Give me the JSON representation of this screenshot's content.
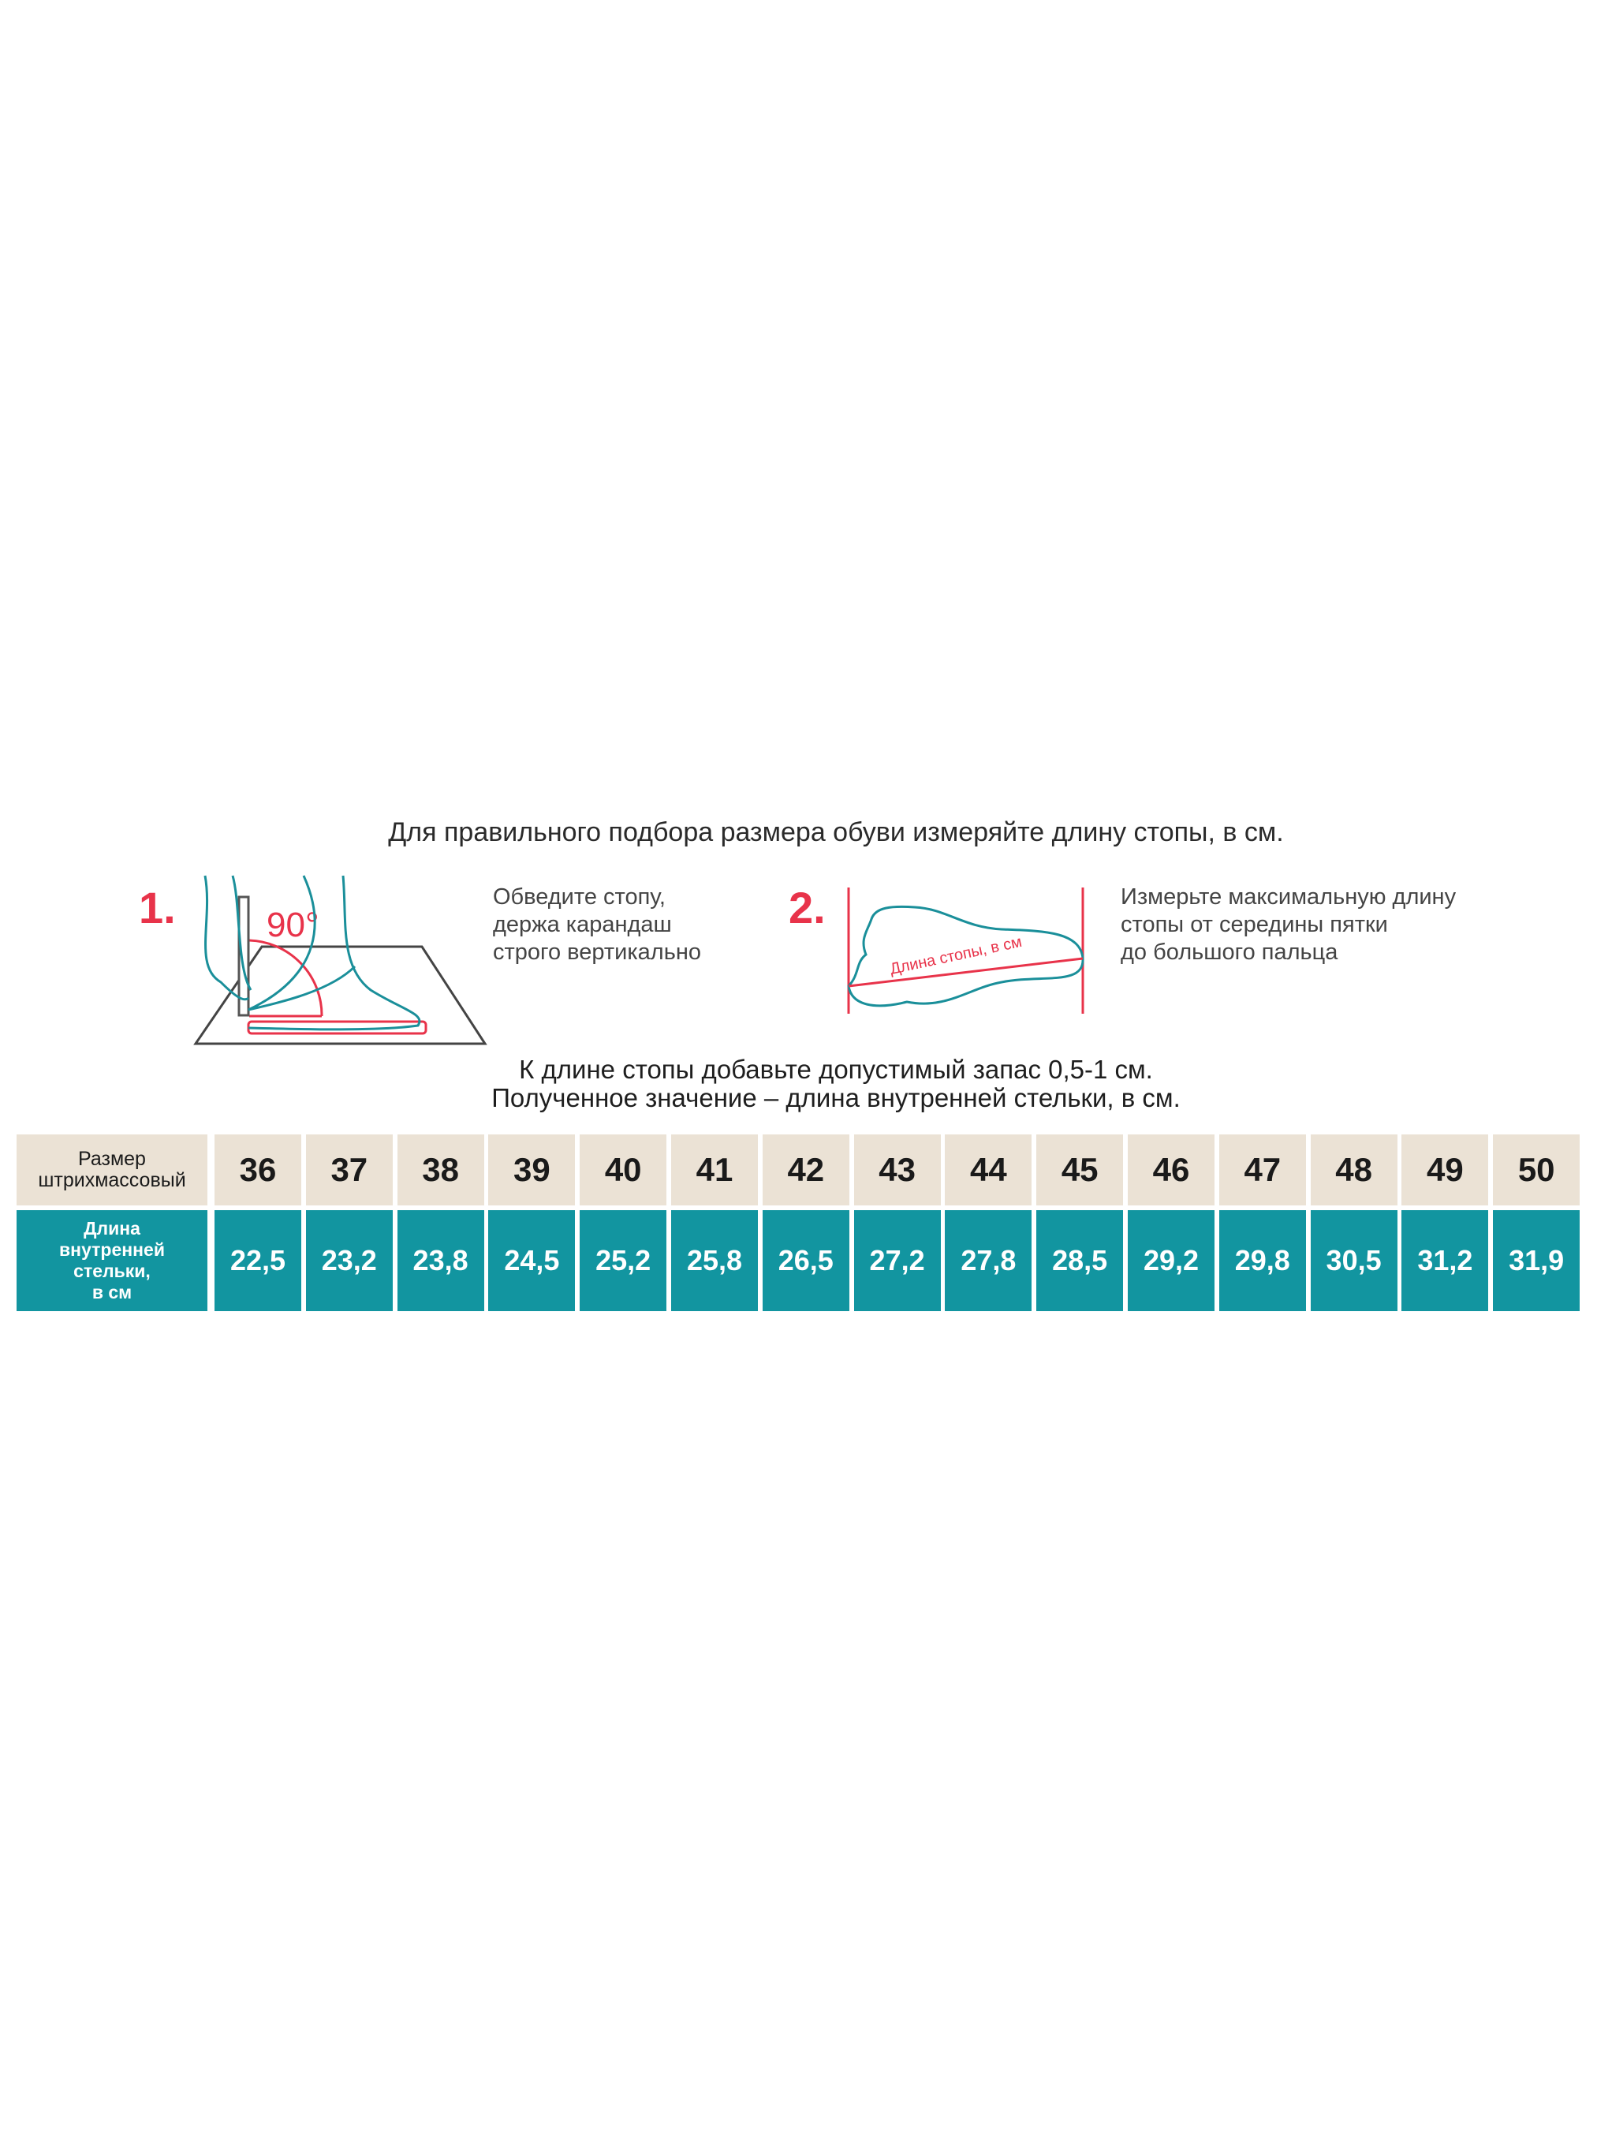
{
  "title": "Для правильного подбора размера обуви измеряйте длину стопы, в см.",
  "step1": {
    "number": "1.",
    "angle": "90°",
    "lines": [
      "Обведите стопу,",
      "держа карандаш",
      "строго вертикально"
    ]
  },
  "step2": {
    "number": "2.",
    "foot_label": "Длина стопы, в см",
    "lines": [
      "Измерьте максимальную длину",
      "стопы от середины пятки",
      "до большого пальца"
    ]
  },
  "note": [
    "К длине стопы добавьте допустимый запас 0,5-1 см.",
    "Полученное значение – длина внутренней стельки, в см."
  ],
  "table": {
    "size_label": [
      "Размер",
      "штрихмассовый"
    ],
    "length_label": [
      "Длина",
      "внутренней",
      "стельки,",
      "в см"
    ],
    "sizes": [
      "36",
      "37",
      "38",
      "39",
      "40",
      "41",
      "42",
      "43",
      "44",
      "45",
      "46",
      "47",
      "48",
      "49",
      "50"
    ],
    "lengths": [
      "22,5",
      "23,2",
      "23,8",
      "24,5",
      "25,2",
      "25,8",
      "26,5",
      "27,2",
      "27,8",
      "28,5",
      "29,2",
      "29,8",
      "30,5",
      "31,2",
      "31,9"
    ]
  },
  "colors": {
    "accent_red": "#e8334a",
    "teal": "#1295a0",
    "beige": "#ebe2d5"
  }
}
